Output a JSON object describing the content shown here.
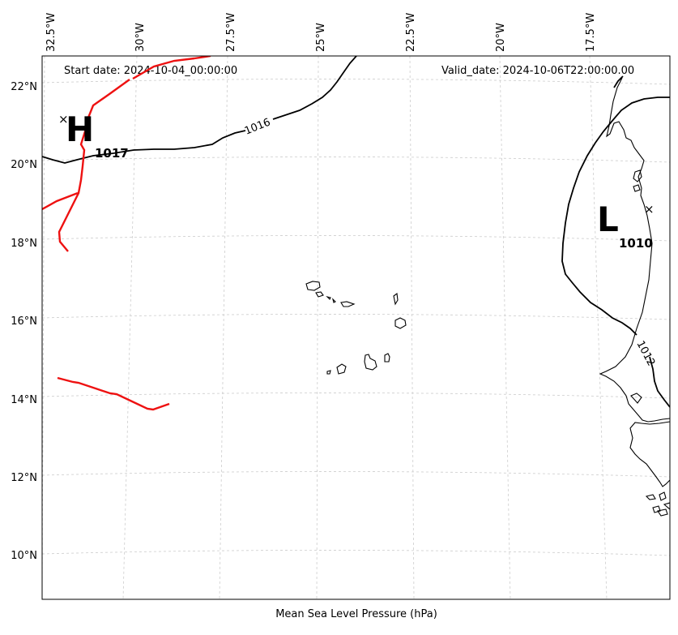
{
  "header": {
    "start_date": "Start date: 2024-10-04_00:00:00",
    "valid_date": "Valid_date: 2024-10-06T22:00:00.00"
  },
  "x_axis_label": "Mean Sea Level Pressure (hPa)",
  "longitude_labels": [
    "32.5°W",
    "30°W",
    "27.5°W",
    "25°W",
    "22.5°W",
    "20°W",
    "17.5°W"
  ],
  "latitude_labels": [
    "22°N",
    "20°N",
    "18°N",
    "16°N",
    "14°N",
    "12°N",
    "10°N"
  ],
  "pressure_centers": [
    {
      "type": "H",
      "value": "1017"
    },
    {
      "type": "L",
      "value": "1010"
    }
  ],
  "contour_labels": [
    "1016",
    "1012"
  ],
  "colors": {
    "isobar": "#000000",
    "front": "#ee1111",
    "grid": "#cccccc"
  }
}
